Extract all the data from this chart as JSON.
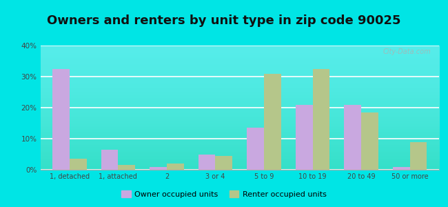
{
  "title": "Owners and renters by unit type in zip code 90025",
  "categories": [
    "1, detached",
    "1, attached",
    "2",
    "3 or 4",
    "5 to 9",
    "10 to 19",
    "20 to 49",
    "50 or more"
  ],
  "owner_values": [
    32.5,
    6.5,
    1.0,
    5.0,
    13.5,
    21.0,
    21.0,
    1.0
  ],
  "renter_values": [
    3.5,
    1.5,
    2.0,
    4.5,
    31.0,
    32.5,
    18.5,
    9.0
  ],
  "owner_color": "#c9a8e0",
  "renter_color": "#b5c68a",
  "background_color": "#00e5e5",
  "ylim": [
    0,
    40
  ],
  "yticks": [
    0,
    10,
    20,
    30,
    40
  ],
  "ytick_labels": [
    "0%",
    "10%",
    "20%",
    "30%",
    "40%"
  ],
  "owner_label": "Owner occupied units",
  "renter_label": "Renter occupied units",
  "title_fontsize": 13,
  "bar_width": 0.35,
  "watermark": "City-Data.com"
}
